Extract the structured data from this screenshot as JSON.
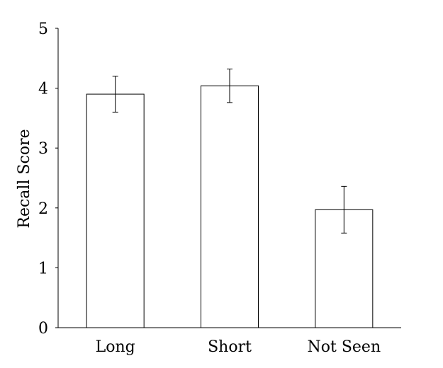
{
  "chart_data": {
    "type": "bar",
    "categories": [
      "Long",
      "Short",
      "Not Seen"
    ],
    "series": [
      {
        "values": [
          3.9,
          4.04,
          1.97
        ],
        "error": [
          0.3,
          0.28,
          0.39
        ]
      }
    ],
    "title": "",
    "xlabel": "",
    "ylabel": "Recall Score",
    "ylim": [
      0,
      5
    ],
    "yticks": [
      "0",
      "1",
      "2",
      "3",
      "4",
      "5"
    ],
    "grid": false,
    "legend": "none",
    "colors": {
      "bar_fill": "#ffffff",
      "bar_stroke": "#000000",
      "axis": "#000000"
    }
  }
}
